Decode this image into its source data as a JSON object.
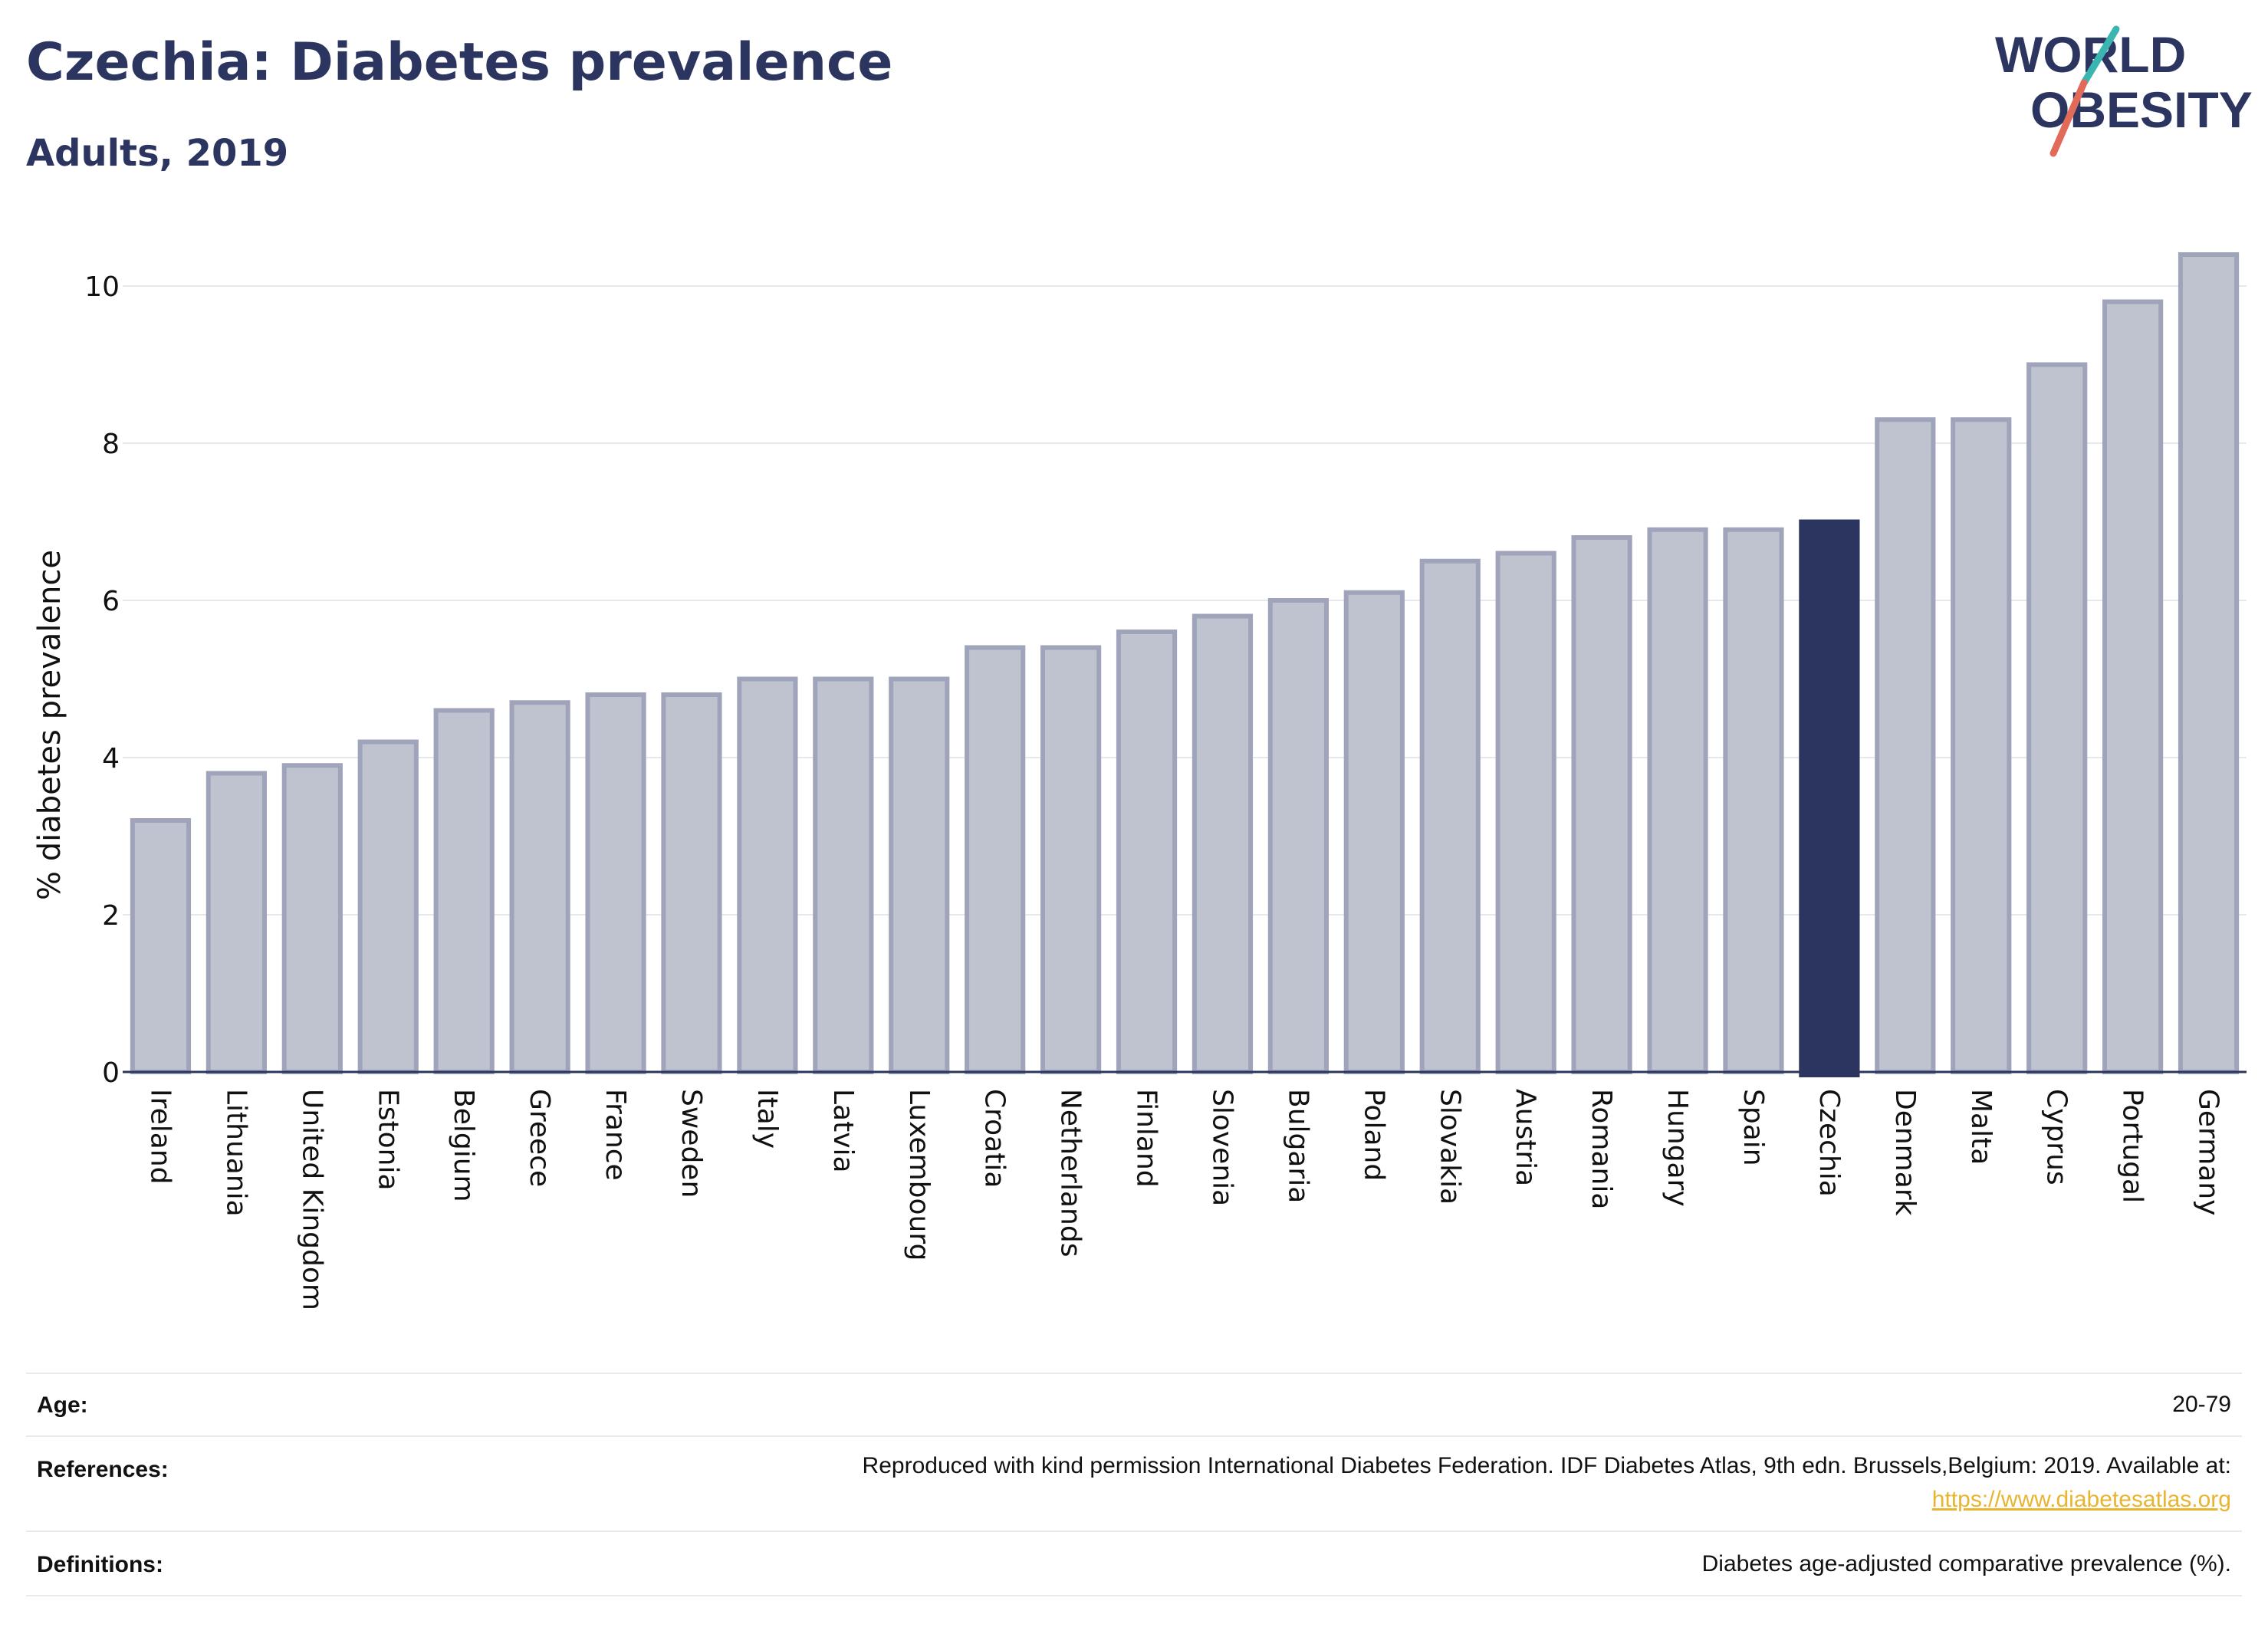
{
  "header": {
    "title": "Czechia: Diabetes prevalence",
    "subtitle": "Adults, 2019"
  },
  "logo": {
    "line1": "WORLD",
    "line2": "OBESITY"
  },
  "colors": {
    "title": "#2b3560",
    "highlight_bar": "#2b3560",
    "other_bar_fill": "#bfc3d0",
    "other_bar_stroke": "#9fa4ba",
    "logo_teal": "#3ab5b0",
    "logo_coral": "#e26a58",
    "link": "#e8b530"
  },
  "chart_data": {
    "type": "bar",
    "ylabel": "% diabetes prevalence",
    "xlabel": "",
    "ylim": [
      0,
      10.6
    ],
    "yticks": [
      0,
      2,
      4,
      6,
      8,
      10
    ],
    "grid": true,
    "highlight": "Czechia",
    "categories": [
      "Ireland",
      "Lithuania",
      "United Kingdom",
      "Estonia",
      "Belgium",
      "Greece",
      "France",
      "Sweden",
      "Italy",
      "Latvia",
      "Luxembourg",
      "Croatia",
      "Netherlands",
      "Finland",
      "Slovenia",
      "Bulgaria",
      "Poland",
      "Slovakia",
      "Austria",
      "Romania",
      "Hungary",
      "Spain",
      "Czechia",
      "Denmark",
      "Malta",
      "Cyprus",
      "Portugal",
      "Germany"
    ],
    "values": [
      3.2,
      3.8,
      3.9,
      4.2,
      4.6,
      4.7,
      4.8,
      4.8,
      5.0,
      5.0,
      5.0,
      5.4,
      5.4,
      5.6,
      5.8,
      6.0,
      6.1,
      6.5,
      6.6,
      6.8,
      6.9,
      6.9,
      7.0,
      8.3,
      8.3,
      9.0,
      9.8,
      10.4
    ]
  },
  "info": {
    "age_label": "Age:",
    "age_value": "20-79",
    "references_label": "References:",
    "references_value": "Reproduced with kind permission International Diabetes Federation. IDF Diabetes Atlas, 9th edn. Brussels,Belgium: 2019. Available at:",
    "references_link": "https://www.diabetesatlas.org",
    "definitions_label": "Definitions:",
    "definitions_value": "Diabetes age-adjusted comparative prevalence (%)."
  }
}
